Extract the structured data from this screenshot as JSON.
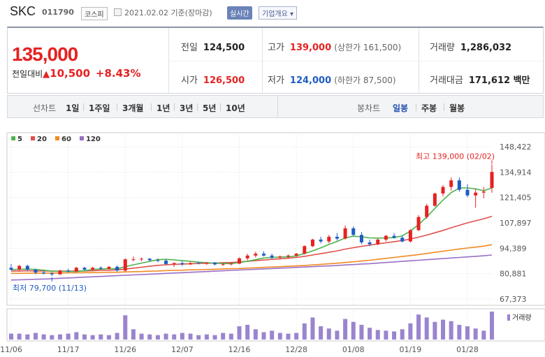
{
  "header": {
    "name": "SKC",
    "code": "011790",
    "market": "코스피",
    "date": "2021.02.02 기준(장마감)",
    "realtime": "실시간",
    "company_info": "기업개요 ▾"
  },
  "summary": {
    "price": "135,000",
    "change_label": "전일대비",
    "change_value": "10,500",
    "change_pct": "+8.43%",
    "prev_label": "전일",
    "prev": "124,500",
    "high_label": "고가",
    "high": "139,000",
    "upper_limit": "(상한가 161,500)",
    "volume_label": "거래량",
    "volume": "1,286,032",
    "open_label": "시가",
    "open": "126,500",
    "low_label": "저가",
    "low": "124,000",
    "lower_limit": "(하한가 87,500)",
    "amount_label": "거래대금",
    "amount": "171,612 백만"
  },
  "tabs": {
    "line_label": "선차트",
    "periods": [
      "1일",
      "1주일",
      "3개월",
      "1년",
      "3년",
      "5년",
      "10년"
    ],
    "candle_label": "봉차트",
    "candles": [
      "일봉",
      "주봉",
      "월봉"
    ],
    "selected_candle": "일봉"
  },
  "colors": {
    "up": "#e52222",
    "down": "#1f5cc2",
    "ma5": "#4db34d",
    "ma20": "#e0504c",
    "ma60": "#f08a24",
    "ma120": "#9a6fc6",
    "volume": "#9b84cf"
  },
  "chart_data": {
    "type": "candlestick",
    "legend": [
      "5",
      "20",
      "60",
      "120"
    ],
    "volume_label": "거래량",
    "y_ticks": [
      "148,422",
      "134,914",
      "121,405",
      "107,897",
      "94,389",
      "80,881",
      "67,373"
    ],
    "ylim": [
      67373,
      148422
    ],
    "x_ticks": [
      {
        "label": "11/06",
        "i": 0
      },
      {
        "label": "11/17",
        "i": 7
      },
      {
        "label": "11/26",
        "i": 14
      },
      {
        "label": "12/07",
        "i": 21
      },
      {
        "label": "12/16",
        "i": 28
      },
      {
        "label": "12/28",
        "i": 35
      },
      {
        "label": "01/08",
        "i": 42
      },
      {
        "label": "01/19",
        "i": 49
      },
      {
        "label": "01/28",
        "i": 56
      }
    ],
    "annotations": {
      "high": "최고 139,000 (02/02)",
      "high_i": 59,
      "high_v": 139000,
      "low": "최저 79,700 (11/13)",
      "low_i": 5,
      "low_v": 79700
    },
    "candles": [
      {
        "o": 84000,
        "h": 86000,
        "l": 82500,
        "c": 83000,
        "v": 8
      },
      {
        "o": 83000,
        "h": 85500,
        "l": 82000,
        "c": 85000,
        "v": 8
      },
      {
        "o": 85000,
        "h": 85600,
        "l": 82200,
        "c": 83000,
        "v": 7
      },
      {
        "o": 83000,
        "h": 83500,
        "l": 80500,
        "c": 81500,
        "v": 9
      },
      {
        "o": 81500,
        "h": 82500,
        "l": 80500,
        "c": 81000,
        "v": 7
      },
      {
        "o": 81000,
        "h": 81800,
        "l": 79700,
        "c": 80500,
        "v": 6
      },
      {
        "o": 80500,
        "h": 83000,
        "l": 80200,
        "c": 82500,
        "v": 7
      },
      {
        "o": 82500,
        "h": 83500,
        "l": 81500,
        "c": 82000,
        "v": 8
      },
      {
        "o": 82000,
        "h": 84500,
        "l": 81800,
        "c": 84000,
        "v": 10
      },
      {
        "o": 84000,
        "h": 84500,
        "l": 82500,
        "c": 83000,
        "v": 7
      },
      {
        "o": 83000,
        "h": 84500,
        "l": 82500,
        "c": 84000,
        "v": 6
      },
      {
        "o": 84000,
        "h": 84800,
        "l": 83000,
        "c": 83500,
        "v": 7
      },
      {
        "o": 83500,
        "h": 85000,
        "l": 83000,
        "c": 84500,
        "v": 6
      },
      {
        "o": 84500,
        "h": 85200,
        "l": 82000,
        "c": 82500,
        "v": 9
      },
      {
        "o": 82500,
        "h": 89000,
        "l": 82000,
        "c": 88500,
        "v": 33
      },
      {
        "o": 88500,
        "h": 90000,
        "l": 87500,
        "c": 88500,
        "v": 14
      },
      {
        "o": 88500,
        "h": 89500,
        "l": 87500,
        "c": 88800,
        "v": 8
      },
      {
        "o": 88800,
        "h": 89200,
        "l": 87500,
        "c": 88000,
        "v": 7
      },
      {
        "o": 88000,
        "h": 89000,
        "l": 87000,
        "c": 87800,
        "v": 6
      },
      {
        "o": 87800,
        "h": 88500,
        "l": 85500,
        "c": 86000,
        "v": 8
      },
      {
        "o": 86000,
        "h": 86800,
        "l": 84500,
        "c": 86500,
        "v": 7
      },
      {
        "o": 86500,
        "h": 87500,
        "l": 85000,
        "c": 85800,
        "v": 9
      },
      {
        "o": 85800,
        "h": 87000,
        "l": 85500,
        "c": 86500,
        "v": 8
      },
      {
        "o": 86500,
        "h": 87200,
        "l": 85800,
        "c": 86200,
        "v": 6
      },
      {
        "o": 86200,
        "h": 87000,
        "l": 85500,
        "c": 86800,
        "v": 7
      },
      {
        "o": 86800,
        "h": 87000,
        "l": 85200,
        "c": 85800,
        "v": 6
      },
      {
        "o": 85800,
        "h": 86500,
        "l": 85000,
        "c": 86000,
        "v": 9
      },
      {
        "o": 86000,
        "h": 87000,
        "l": 85200,
        "c": 86200,
        "v": 8
      },
      {
        "o": 86200,
        "h": 89500,
        "l": 86000,
        "c": 89000,
        "v": 18
      },
      {
        "o": 89000,
        "h": 91500,
        "l": 88000,
        "c": 90500,
        "v": 20
      },
      {
        "o": 90500,
        "h": 92500,
        "l": 89500,
        "c": 91500,
        "v": 14
      },
      {
        "o": 91500,
        "h": 92800,
        "l": 90000,
        "c": 90500,
        "v": 10
      },
      {
        "o": 90500,
        "h": 91500,
        "l": 88500,
        "c": 89500,
        "v": 12
      },
      {
        "o": 89500,
        "h": 90500,
        "l": 88500,
        "c": 90000,
        "v": 9
      },
      {
        "o": 90000,
        "h": 91000,
        "l": 89000,
        "c": 90500,
        "v": 8
      },
      {
        "o": 90500,
        "h": 91800,
        "l": 89800,
        "c": 91500,
        "v": 9
      },
      {
        "o": 91500,
        "h": 96000,
        "l": 91000,
        "c": 95500,
        "v": 22
      },
      {
        "o": 95500,
        "h": 99500,
        "l": 95000,
        "c": 99000,
        "v": 30
      },
      {
        "o": 99000,
        "h": 100500,
        "l": 97000,
        "c": 98000,
        "v": 18
      },
      {
        "o": 98000,
        "h": 101500,
        "l": 97000,
        "c": 100500,
        "v": 15
      },
      {
        "o": 100500,
        "h": 102500,
        "l": 98500,
        "c": 99500,
        "v": 12
      },
      {
        "o": 99500,
        "h": 106500,
        "l": 99000,
        "c": 105000,
        "v": 28
      },
      {
        "o": 105000,
        "h": 106000,
        "l": 101000,
        "c": 101500,
        "v": 24
      },
      {
        "o": 101500,
        "h": 103000,
        "l": 96500,
        "c": 97500,
        "v": 20
      },
      {
        "o": 97500,
        "h": 99000,
        "l": 95500,
        "c": 96500,
        "v": 16
      },
      {
        "o": 96500,
        "h": 99500,
        "l": 96000,
        "c": 99000,
        "v": 13
      },
      {
        "o": 99000,
        "h": 101500,
        "l": 98000,
        "c": 101000,
        "v": 12
      },
      {
        "o": 101000,
        "h": 102500,
        "l": 99500,
        "c": 100000,
        "v": 11
      },
      {
        "o": 100000,
        "h": 101000,
        "l": 97500,
        "c": 98000,
        "v": 14
      },
      {
        "o": 98000,
        "h": 104500,
        "l": 97500,
        "c": 104000,
        "v": 22
      },
      {
        "o": 104000,
        "h": 112000,
        "l": 103500,
        "c": 111000,
        "v": 34
      },
      {
        "o": 111000,
        "h": 118000,
        "l": 110000,
        "c": 117000,
        "v": 30
      },
      {
        "o": 117000,
        "h": 124000,
        "l": 116500,
        "c": 123500,
        "v": 24
      },
      {
        "o": 123500,
        "h": 128000,
        "l": 122000,
        "c": 127000,
        "v": 27
      },
      {
        "o": 127000,
        "h": 132000,
        "l": 125000,
        "c": 130500,
        "v": 25
      },
      {
        "o": 130500,
        "h": 132000,
        "l": 124500,
        "c": 125500,
        "v": 20
      },
      {
        "o": 125500,
        "h": 128500,
        "l": 121500,
        "c": 122500,
        "v": 18
      },
      {
        "o": 122500,
        "h": 126000,
        "l": 116000,
        "c": 124000,
        "v": 15
      },
      {
        "o": 124000,
        "h": 127000,
        "l": 121000,
        "c": 124500,
        "v": 12
      },
      {
        "o": 126500,
        "h": 139000,
        "l": 124000,
        "c": 135000,
        "v": 38
      }
    ],
    "ma5": [
      83000,
      83200,
      83300,
      83100,
      82700,
      82200,
      82100,
      82100,
      82000,
      82400,
      83100,
      83300,
      83600,
      83400,
      84600,
      85600,
      86500,
      87400,
      88300,
      88500,
      88200,
      87800,
      87400,
      87000,
      86700,
      86400,
      86300,
      86200,
      86800,
      87500,
      88300,
      89200,
      89500,
      89700,
      89800,
      90300,
      91600,
      93000,
      94600,
      96400,
      98000,
      99900,
      100800,
      100500,
      99900,
      99800,
      99900,
      100000,
      101000,
      103500,
      107000,
      111000,
      115600,
      120000,
      124000,
      126500,
      126500,
      126000,
      125000,
      126500
    ],
    "ma20": [
      82200,
      82300,
      82400,
      82300,
      82300,
      82200,
      82200,
      82200,
      82300,
      82300,
      82400,
      82600,
      82700,
      82900,
      83300,
      83800,
      84300,
      84800,
      85300,
      85600,
      85800,
      86000,
      86100,
      86300,
      86400,
      86500,
      86700,
      86800,
      87100,
      87400,
      87800,
      88100,
      88500,
      88800,
      89100,
      89500,
      90100,
      90800,
      91500,
      92200,
      93000,
      93900,
      94700,
      95400,
      96000,
      96700,
      97300,
      97900,
      98500,
      99300,
      100300,
      101400,
      102600,
      103900,
      105300,
      106600,
      107900,
      109000,
      110100,
      111400
    ],
    "ma60": [
      81000,
      81000,
      81100,
      81100,
      81100,
      81200,
      81200,
      81300,
      81300,
      81400,
      81400,
      81500,
      81600,
      81600,
      81800,
      81900,
      82000,
      82200,
      82300,
      82500,
      82600,
      82700,
      82900,
      83000,
      83100,
      83200,
      83400,
      83500,
      83600,
      83800,
      84000,
      84200,
      84400,
      84600,
      84800,
      85000,
      85200,
      85500,
      85800,
      86100,
      86400,
      86800,
      87200,
      87600,
      88000,
      88500,
      89000,
      89500,
      90000,
      90500,
      91000,
      91600,
      92200,
      92800,
      93400,
      94000,
      94500,
      95000,
      95500,
      96300
    ],
    "ma120": [
      77500,
      77600,
      77700,
      77900,
      78000,
      78200,
      78400,
      78600,
      78800,
      79000,
      79200,
      79400,
      79600,
      79800,
      80000,
      80200,
      80400,
      80600,
      80800,
      81000,
      81200,
      81400,
      81600,
      81800,
      82000,
      82200,
      82400,
      82600,
      82800,
      83000,
      83200,
      83400,
      83600,
      83800,
      84000,
      84200,
      84400,
      84600,
      84800,
      85000,
      85200,
      85500,
      85700,
      86000,
      86200,
      86500,
      86800,
      87100,
      87400,
      87700,
      88000,
      88300,
      88600,
      88900,
      89200,
      89500,
      89800,
      90100,
      90400,
      90800
    ]
  }
}
